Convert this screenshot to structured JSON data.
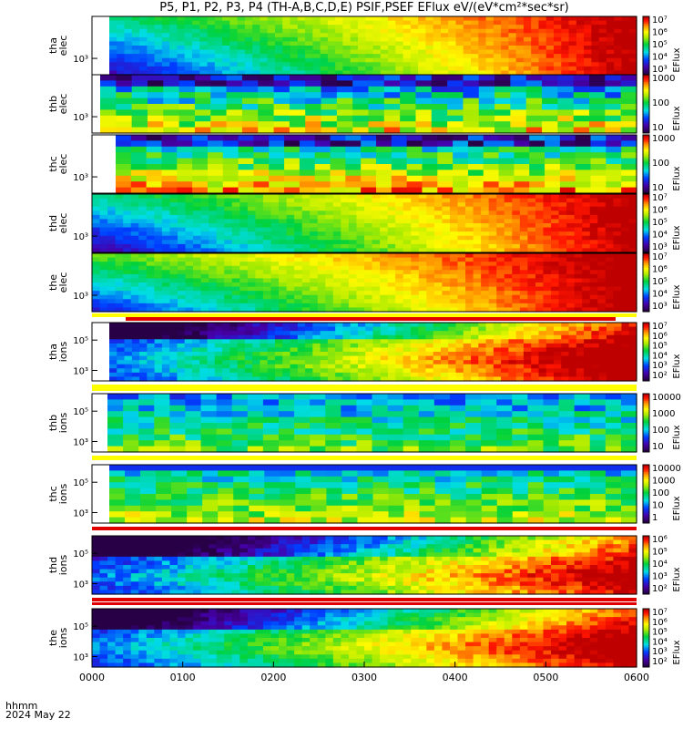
{
  "title": "P5, P1, P2, P3, P4 (TH-A,B,C,D,E) PSIF,PSEF EFlux eV/(eV*cm²*sec*sr)",
  "footer": {
    "line1": "hhmm",
    "line2": "2024 May 22"
  },
  "colors": {
    "bar_red": "#e00000",
    "bar_yellow": "#ffff00"
  },
  "chart_data": {
    "type": "heatmap",
    "colormap": "rainbow (purple→blue→cyan→green→yellow→red)",
    "x_ticks": [
      "0000",
      "0100",
      "0200",
      "0300",
      "0400",
      "0500",
      "0600"
    ],
    "x_range_hours": [
      0,
      6
    ],
    "panels": [
      {
        "ylabel": [
          "tha",
          "elec"
        ],
        "ytick": "10³",
        "log_scale": true,
        "colorbar": {
          "label": "EFlux",
          "ticks": [
            "10⁷",
            "10⁶",
            "10⁵",
            "10⁴",
            "10³"
          ]
        }
      },
      {
        "ylabel": [
          "thb",
          "elec"
        ],
        "ytick": "10³",
        "log_scale": true,
        "colorbar": {
          "label": "EFlux",
          "ticks": [
            "1000",
            "100",
            "10"
          ]
        }
      },
      {
        "ylabel": [
          "thc",
          "elec"
        ],
        "ytick": "10³",
        "log_scale": true,
        "colorbar": {
          "label": "EFlux",
          "ticks": [
            "1000",
            "100",
            "10"
          ]
        }
      },
      {
        "ylabel": [
          "thd",
          "elec"
        ],
        "ytick": "10³",
        "log_scale": true,
        "colorbar": {
          "label": "EFlux",
          "ticks": [
            "10⁷",
            "10⁶",
            "10⁵",
            "10⁴",
            "10³"
          ]
        }
      },
      {
        "ylabel": [
          "the",
          "elec"
        ],
        "ytick": "10³",
        "log_scale": true,
        "colorbar": {
          "label": "EFlux",
          "ticks": [
            "10⁷",
            "10⁶",
            "10⁵",
            "10⁴",
            "10³"
          ]
        }
      },
      {
        "ylabel": [
          "tha",
          "ions"
        ],
        "yticks": [
          "10⁵",
          "10³"
        ],
        "log_scale": true,
        "colorbar": {
          "label": "EFlux",
          "ticks": [
            "10⁷",
            "10⁶",
            "10⁵",
            "10⁴",
            "10³",
            "10²"
          ]
        }
      },
      {
        "ylabel": [
          "thb",
          "ions"
        ],
        "yticks": [
          "10⁵",
          "10³"
        ],
        "log_scale": true,
        "colorbar": {
          "label": "EFlux",
          "ticks": [
            "10000",
            "1000",
            "100",
            "10"
          ]
        }
      },
      {
        "ylabel": [
          "thc",
          "ions"
        ],
        "yticks": [
          "10⁵",
          "10³"
        ],
        "log_scale": true,
        "colorbar": {
          "label": "EFlux",
          "ticks": [
            "10000",
            "1000",
            "100",
            "10",
            "1"
          ]
        }
      },
      {
        "ylabel": [
          "thd",
          "ions"
        ],
        "yticks": [
          "10⁵",
          "10³"
        ],
        "log_scale": true,
        "colorbar": {
          "label": "EFlux",
          "ticks": [
            "10⁶",
            "10⁵",
            "10⁴",
            "10³",
            "10²"
          ]
        }
      },
      {
        "ylabel": [
          "the",
          "ions"
        ],
        "yticks": [
          "10⁵",
          "10³"
        ],
        "log_scale": true,
        "colorbar": {
          "label": "EFlux",
          "ticks": [
            "10⁷",
            "10⁶",
            "10⁵",
            "10⁴",
            "10³",
            "10²"
          ]
        }
      }
    ]
  }
}
